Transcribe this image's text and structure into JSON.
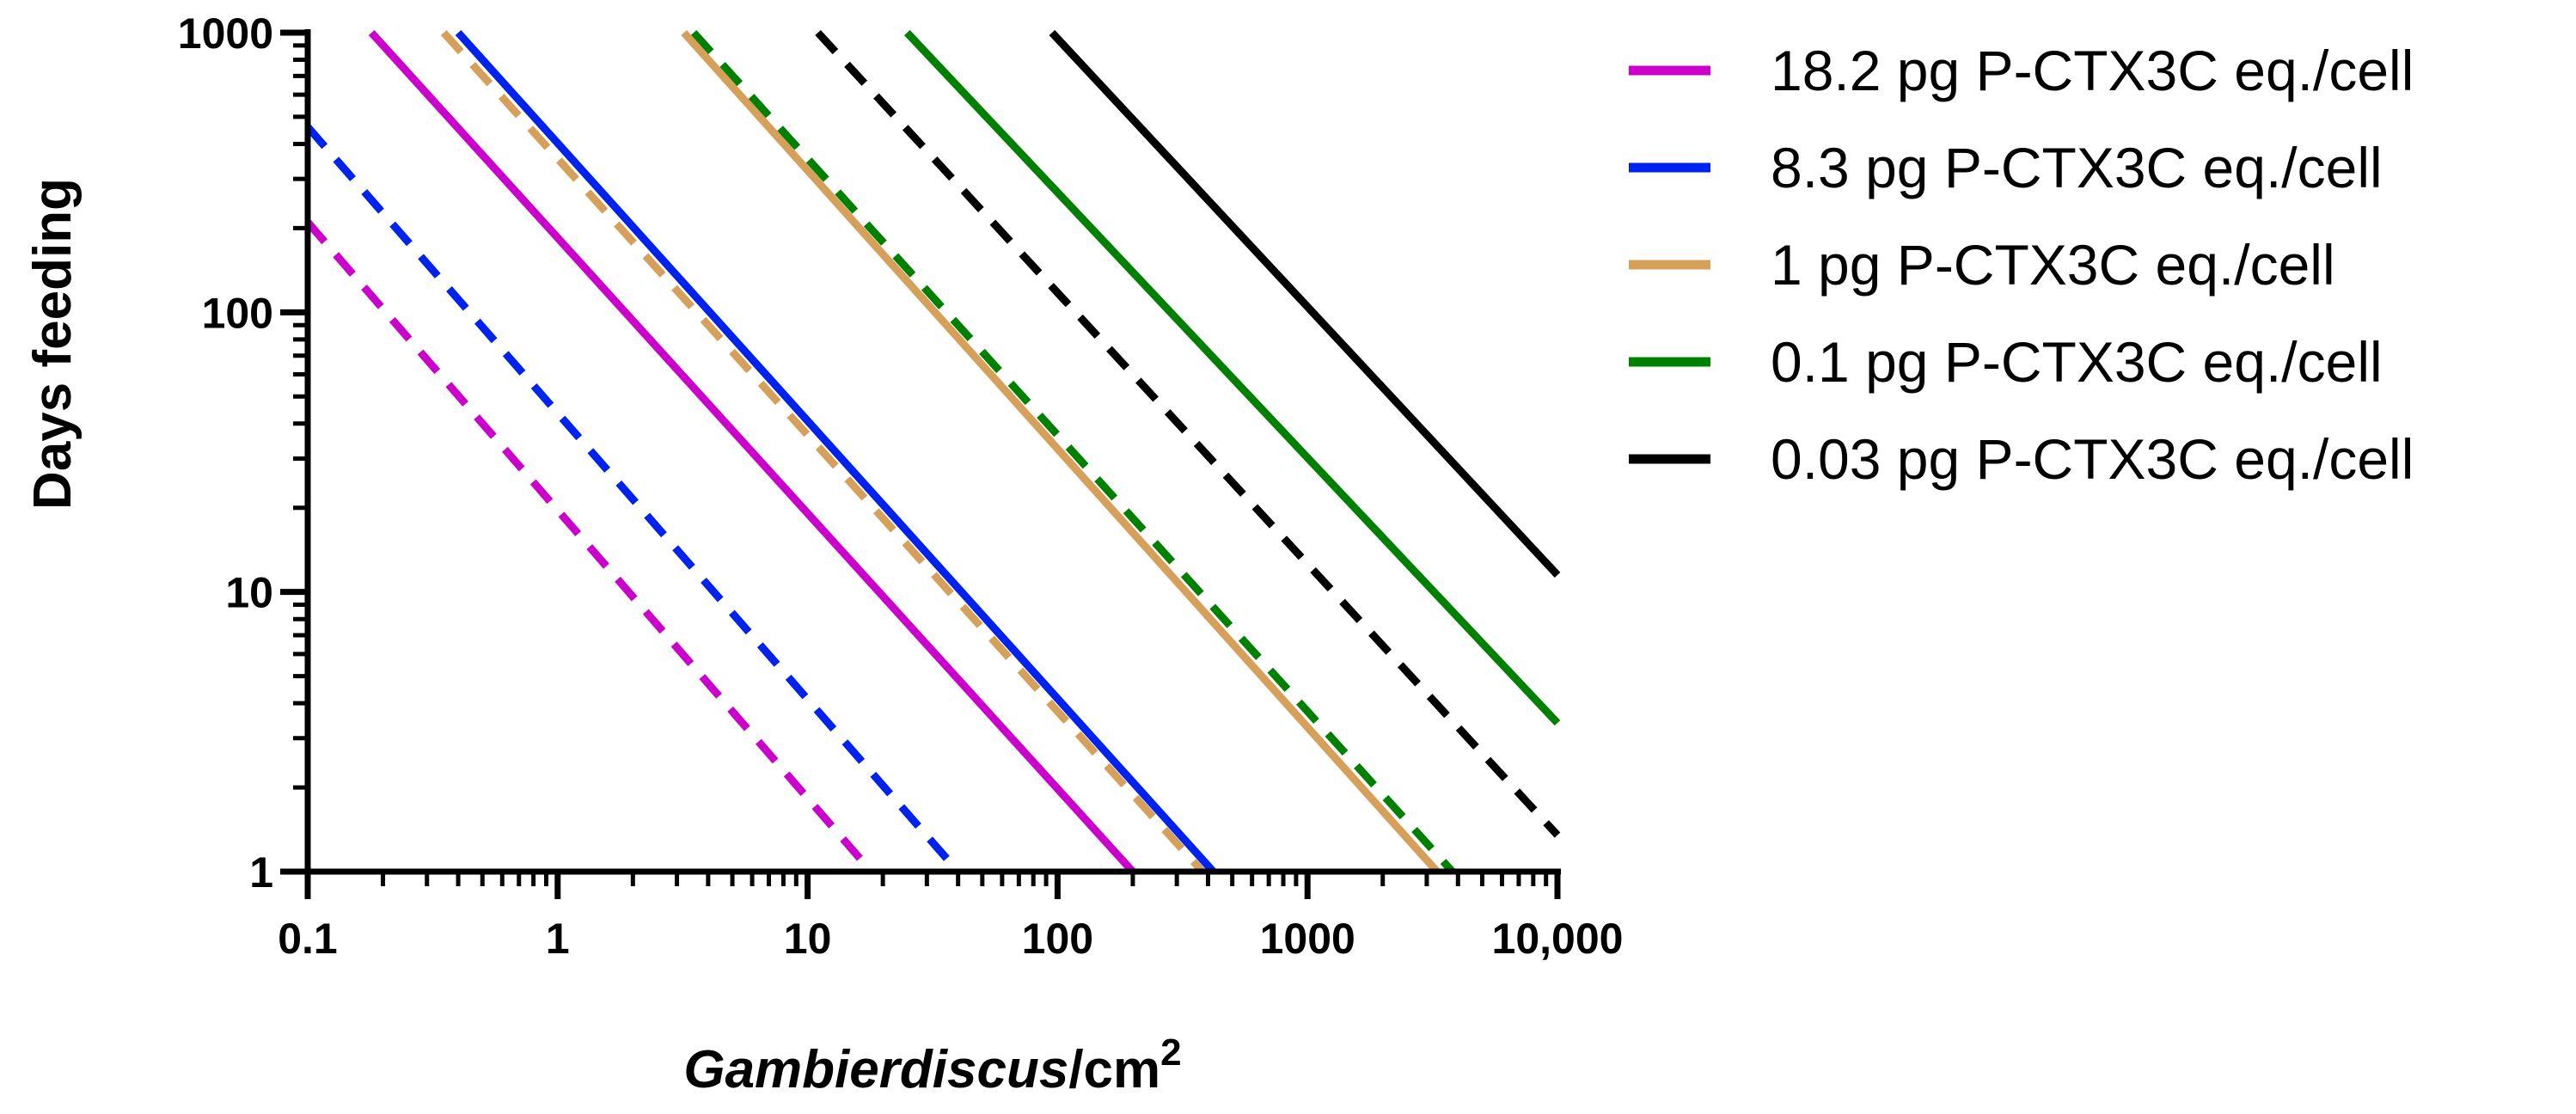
{
  "chart_data": {
    "type": "line",
    "title": "",
    "xlabel_italic": "Gambierdiscus",
    "xlabel_unit": "/cm",
    "xlabel_sup": "2",
    "ylabel": "Days feeding",
    "x_scale": "log",
    "y_scale": "log",
    "xlim": [
      0.1,
      10000
    ],
    "ylim": [
      1,
      1000
    ],
    "x_ticks": [
      0.1,
      1,
      10,
      100,
      1000,
      10000
    ],
    "x_tick_labels": [
      "0.1",
      "1",
      "10",
      "100",
      "1000",
      "10,000"
    ],
    "y_ticks": [
      1,
      10,
      100,
      1000
    ],
    "y_tick_labels": [
      "1",
      "10",
      "100",
      "1000"
    ],
    "grid": false,
    "legend_position": "right",
    "legend": [
      {
        "label": "18.2 pg P-CTX3C eq./cell",
        "color": "#cc00cc"
      },
      {
        "label": "8.3 pg P-CTX3C eq./cell",
        "color": "#0022ee"
      },
      {
        "label": "1 pg P-CTX3C eq./cell",
        "color": "#d6a05a"
      },
      {
        "label": "0.1 pg P-CTX3C eq./cell",
        "color": "#008000"
      },
      {
        "label": "0.03 pg P-CTX3C eq./cell",
        "color": "#000000"
      }
    ],
    "series": [
      {
        "color": "#cc00cc",
        "dash": "dashed",
        "x": [
          0.1,
          18
        ],
        "y": [
          210,
          1
        ]
      },
      {
        "color": "#0022ee",
        "dash": "dashed",
        "x": [
          0.1,
          40
        ],
        "y": [
          460,
          1
        ]
      },
      {
        "color": "#cc00cc",
        "dash": "solid",
        "x": [
          0.18,
          200
        ],
        "y": [
          1000,
          1
        ]
      },
      {
        "color": "#d6a05a",
        "dash": "dashed",
        "x": [
          0.35,
          380
        ],
        "y": [
          1000,
          1
        ]
      },
      {
        "color": "#0022ee",
        "dash": "solid",
        "x": [
          0.4,
          420
        ],
        "y": [
          1000,
          1
        ]
      },
      {
        "color": "#008000",
        "dash": "dashed",
        "x": [
          3.5,
          3800
        ],
        "y": [
          1000,
          1
        ]
      },
      {
        "color": "#d6a05a",
        "dash": "solid",
        "x": [
          3.2,
          3300
        ],
        "y": [
          1000,
          1
        ]
      },
      {
        "color": "#000000",
        "dash": "dashed",
        "x": [
          11,
          10000
        ],
        "y": [
          1000,
          1.35
        ]
      },
      {
        "color": "#008000",
        "dash": "solid",
        "x": [
          25,
          10000
        ],
        "y": [
          1000,
          3.4
        ]
      },
      {
        "color": "#000000",
        "dash": "solid",
        "x": [
          95,
          10000
        ],
        "y": [
          1000,
          11.5
        ]
      }
    ]
  }
}
